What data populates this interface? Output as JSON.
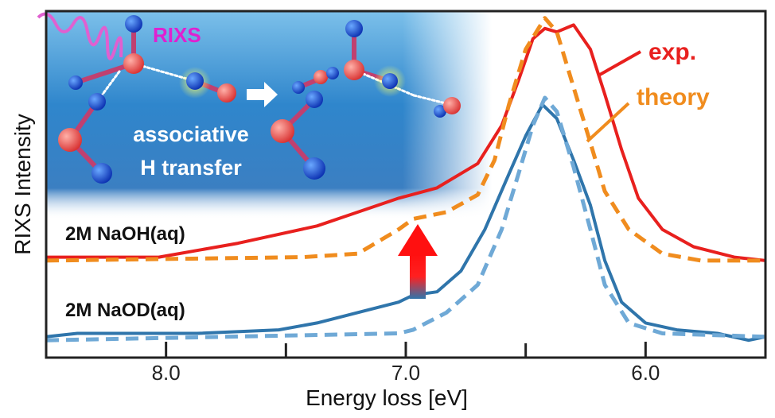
{
  "chart_data": {
    "type": "line",
    "xlabel": "Energy loss [eV]",
    "ylabel": "RIXS Intensity",
    "xlim": [
      8.5,
      5.5
    ],
    "x_reversed": true,
    "ylim": [
      0,
      1
    ],
    "x_ticks": [
      8.0,
      7.5,
      7.0,
      6.5,
      6.0
    ],
    "x_tick_labels": [
      "8.0",
      "",
      "7.0",
      "",
      "6.0"
    ],
    "grid": false,
    "series": [
      {
        "name": "exp.",
        "sample": "2M NaOH(aq)",
        "color": "#e8201e",
        "style": "solid",
        "x": [
          8.5,
          8.03,
          7.7,
          7.37,
          7.2,
          7.03,
          6.87,
          6.7,
          6.6,
          6.53,
          6.47,
          6.42,
          6.37,
          6.3,
          6.23,
          6.17,
          6.1,
          6.03,
          5.93,
          5.8,
          5.63,
          5.5
        ],
        "y": [
          0.29,
          0.29,
          0.33,
          0.38,
          0.42,
          0.46,
          0.49,
          0.56,
          0.67,
          0.8,
          0.92,
          0.95,
          0.94,
          0.96,
          0.89,
          0.76,
          0.6,
          0.46,
          0.37,
          0.32,
          0.29,
          0.28
        ]
      },
      {
        "name": "theory",
        "sample": "2M NaOH(aq)",
        "color": "#f08c1e",
        "style": "dashed",
        "x": [
          8.5,
          7.43,
          7.2,
          7.03,
          6.97,
          6.83,
          6.7,
          6.63,
          6.57,
          6.5,
          6.42,
          6.37,
          6.3,
          6.23,
          6.17,
          6.07,
          5.93,
          5.77,
          5.5
        ],
        "y": [
          0.28,
          0.29,
          0.3,
          0.37,
          0.4,
          0.42,
          0.47,
          0.57,
          0.73,
          0.89,
          0.98,
          0.94,
          0.78,
          0.62,
          0.48,
          0.37,
          0.3,
          0.28,
          0.28
        ]
      },
      {
        "name": "exp.",
        "sample": "2M NaOD(aq)",
        "color": "#2f75ab",
        "style": "solid",
        "x": [
          8.5,
          8.37,
          7.87,
          7.53,
          7.37,
          7.2,
          7.03,
          6.97,
          6.87,
          6.77,
          6.67,
          6.57,
          6.5,
          6.43,
          6.37,
          6.3,
          6.23,
          6.17,
          6.1,
          6.0,
          5.87,
          5.7,
          5.57,
          5.5
        ],
        "y": [
          0.06,
          0.07,
          0.07,
          0.08,
          0.1,
          0.13,
          0.16,
          0.18,
          0.19,
          0.25,
          0.37,
          0.53,
          0.64,
          0.73,
          0.69,
          0.57,
          0.44,
          0.28,
          0.16,
          0.1,
          0.08,
          0.07,
          0.05,
          0.06
        ]
      },
      {
        "name": "theory",
        "sample": "2M NaOD(aq)",
        "color": "#6fa9d6",
        "style": "dashed",
        "x": [
          8.5,
          7.03,
          6.97,
          6.83,
          6.7,
          6.6,
          6.53,
          6.47,
          6.42,
          6.37,
          6.3,
          6.23,
          6.17,
          6.07,
          5.93,
          5.5
        ],
        "y": [
          0.05,
          0.07,
          0.08,
          0.13,
          0.21,
          0.37,
          0.53,
          0.67,
          0.75,
          0.71,
          0.55,
          0.37,
          0.21,
          0.1,
          0.07,
          0.06
        ]
      }
    ],
    "annotations": {
      "sample_labels": [
        "2M NaOH(aq)",
        "2M NaOD(aq)"
      ],
      "exp_label": "exp.",
      "theory_label": "theory",
      "inset_title": "RIXS",
      "inset_caption_line1": "associative",
      "inset_caption_line2": "H transfer"
    },
    "colors": {
      "exp_naoh": "#e8201e",
      "theory_naoh": "#f08c1e",
      "exp_naod": "#2f75ab",
      "theory_naod": "#6fa9d6",
      "rixs_label": "#e020d0"
    }
  }
}
